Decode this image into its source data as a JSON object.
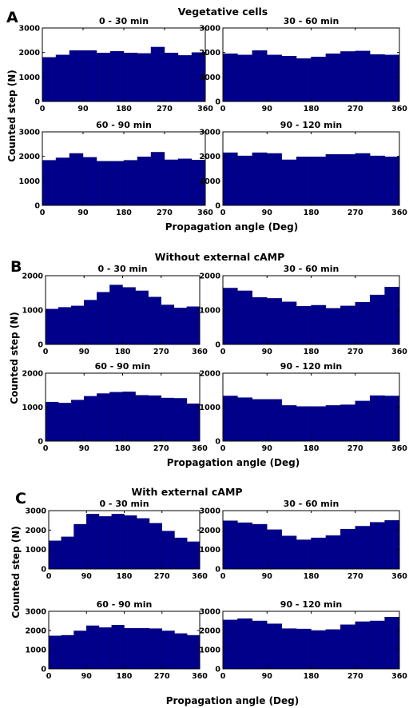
{
  "colors": {
    "bar_fill": "#00008b",
    "bar_edge": "#000066",
    "axes": "#000000",
    "background": "#ffffff"
  },
  "panels": [
    {
      "letter": "A",
      "title": "Vegetative cells",
      "ylabel": "Counted step (N)",
      "xlabel": "Propagation angle (Deg)"
    },
    {
      "letter": "B",
      "title": "Without external cAMP",
      "ylabel": "Counted step (N)",
      "xlabel": "Propagation angle (Deg)"
    },
    {
      "letter": "C",
      "title": "With external cAMP",
      "ylabel": "Counted step (N)",
      "xlabel": "Propagation angle (Deg)"
    }
  ],
  "chart_data": [
    {
      "panel": "A",
      "type": "bar",
      "title": "0 - 30 min",
      "xlim": [
        0,
        360
      ],
      "xticks": [
        0,
        90,
        180,
        270,
        360
      ],
      "ylim": [
        0,
        3000
      ],
      "yticks": [
        0,
        1000,
        2000,
        3000
      ],
      "bin_width": 30,
      "bin_edges": [
        0,
        30,
        60,
        90,
        120,
        150,
        180,
        210,
        240,
        270,
        300,
        330,
        360
      ],
      "values": [
        1800,
        1900,
        2080,
        2080,
        1980,
        2050,
        1980,
        1960,
        2220,
        1980,
        1880,
        2000
      ]
    },
    {
      "panel": "A",
      "type": "bar",
      "title": "30 - 60 min",
      "xlim": [
        0,
        360
      ],
      "xticks": [
        0,
        90,
        180,
        270,
        360
      ],
      "ylim": [
        0,
        3000
      ],
      "yticks": [
        0,
        1000,
        2000,
        3000
      ],
      "bin_width": 30,
      "bin_edges": [
        0,
        30,
        60,
        90,
        120,
        150,
        180,
        210,
        240,
        270,
        300,
        330,
        360
      ],
      "values": [
        1950,
        1900,
        2080,
        1900,
        1850,
        1750,
        1820,
        1950,
        2040,
        2060,
        1920,
        1900
      ]
    },
    {
      "panel": "A",
      "type": "bar",
      "title": "60 - 90 min",
      "xlim": [
        0,
        360
      ],
      "xticks": [
        0,
        90,
        180,
        270,
        360
      ],
      "ylim": [
        0,
        3000
      ],
      "yticks": [
        0,
        1000,
        2000,
        3000
      ],
      "bin_width": 30,
      "bin_edges": [
        0,
        30,
        60,
        90,
        120,
        150,
        180,
        210,
        240,
        270,
        300,
        330,
        360
      ],
      "values": [
        1840,
        1940,
        2120,
        1960,
        1800,
        1800,
        1840,
        1980,
        2170,
        1860,
        1900,
        1850
      ]
    },
    {
      "panel": "A",
      "type": "bar",
      "title": "90 - 120 min",
      "xlim": [
        0,
        360
      ],
      "xticks": [
        0,
        90,
        180,
        270,
        360
      ],
      "ylim": [
        0,
        3000
      ],
      "yticks": [
        0,
        1000,
        2000,
        3000
      ],
      "bin_width": 30,
      "bin_edges": [
        0,
        30,
        60,
        90,
        120,
        150,
        180,
        210,
        240,
        270,
        300,
        330,
        360
      ],
      "values": [
        2150,
        2020,
        2150,
        2120,
        1860,
        1980,
        1980,
        2080,
        2080,
        2120,
        2020,
        1980
      ]
    },
    {
      "panel": "B",
      "type": "bar",
      "title": "0 - 30 min",
      "xlim": [
        0,
        360
      ],
      "xticks": [
        0,
        90,
        180,
        270,
        360
      ],
      "ylim": [
        0,
        2000
      ],
      "yticks": [
        0,
        1000,
        2000
      ],
      "bin_width": 30,
      "bin_edges": [
        0,
        30,
        60,
        90,
        120,
        150,
        180,
        210,
        240,
        270,
        300,
        330,
        360
      ],
      "values": [
        1030,
        1080,
        1120,
        1290,
        1520,
        1730,
        1660,
        1560,
        1380,
        1150,
        1060,
        1100
      ]
    },
    {
      "panel": "B",
      "type": "bar",
      "title": "30 - 60 min",
      "xlim": [
        0,
        360
      ],
      "xticks": [
        0,
        90,
        180,
        270,
        360
      ],
      "ylim": [
        0,
        2000
      ],
      "yticks": [
        0,
        1000,
        2000
      ],
      "bin_width": 30,
      "bin_edges": [
        0,
        30,
        60,
        90,
        120,
        150,
        180,
        210,
        240,
        270,
        300,
        330,
        360
      ],
      "values": [
        1640,
        1560,
        1370,
        1340,
        1240,
        1110,
        1140,
        1050,
        1120,
        1230,
        1440,
        1670
      ]
    },
    {
      "panel": "B",
      "type": "bar",
      "title": "60 - 90 min",
      "xlim": [
        0,
        360
      ],
      "xticks": [
        0,
        90,
        180,
        270,
        360
      ],
      "ylim": [
        0,
        2000
      ],
      "yticks": [
        0,
        1000,
        2000
      ],
      "bin_width": 30,
      "bin_edges": [
        0,
        30,
        60,
        90,
        120,
        150,
        180,
        210,
        240,
        270,
        300,
        330,
        360
      ],
      "values": [
        1150,
        1120,
        1210,
        1320,
        1400,
        1440,
        1450,
        1350,
        1340,
        1270,
        1260,
        1100
      ]
    },
    {
      "panel": "B",
      "type": "bar",
      "title": "90 - 120 min",
      "xlim": [
        0,
        360
      ],
      "xticks": [
        0,
        90,
        180,
        270,
        360
      ],
      "ylim": [
        0,
        2000
      ],
      "yticks": [
        0,
        1000,
        2000
      ],
      "bin_width": 30,
      "bin_edges": [
        0,
        30,
        60,
        90,
        120,
        150,
        180,
        210,
        240,
        270,
        300,
        330,
        360
      ],
      "values": [
        1330,
        1280,
        1230,
        1230,
        1050,
        1020,
        1020,
        1050,
        1070,
        1180,
        1340,
        1330
      ]
    },
    {
      "panel": "C",
      "type": "bar",
      "title": "0 - 30 min",
      "xlim": [
        0,
        360
      ],
      "xticks": [
        0,
        90,
        180,
        270,
        360
      ],
      "ylim": [
        0,
        3000
      ],
      "yticks": [
        0,
        1000,
        2000,
        3000
      ],
      "bin_width": 30,
      "bin_edges": [
        0,
        30,
        60,
        90,
        120,
        150,
        180,
        210,
        240,
        270,
        300,
        330,
        360
      ],
      "values": [
        1450,
        1650,
        2300,
        2820,
        2700,
        2820,
        2750,
        2600,
        2350,
        1950,
        1600,
        1400
      ]
    },
    {
      "panel": "C",
      "type": "bar",
      "title": "30 - 60 min",
      "xlim": [
        0,
        360
      ],
      "xticks": [
        0,
        90,
        180,
        270,
        360
      ],
      "ylim": [
        0,
        3000
      ],
      "yticks": [
        0,
        1000,
        2000,
        3000
      ],
      "bin_width": 30,
      "bin_edges": [
        0,
        30,
        60,
        90,
        120,
        150,
        180,
        210,
        240,
        270,
        300,
        330,
        360
      ],
      "values": [
        2480,
        2380,
        2300,
        2020,
        1700,
        1500,
        1600,
        1720,
        2050,
        2200,
        2400,
        2500
      ]
    },
    {
      "panel": "C",
      "type": "bar",
      "title": "60 - 90 min",
      "xlim": [
        0,
        360
      ],
      "xticks": [
        0,
        90,
        180,
        270,
        360
      ],
      "ylim": [
        0,
        3000
      ],
      "yticks": [
        0,
        1000,
        2000,
        3000
      ],
      "bin_width": 30,
      "bin_edges": [
        0,
        30,
        60,
        90,
        120,
        150,
        180,
        210,
        240,
        270,
        300,
        330,
        360
      ],
      "values": [
        1720,
        1750,
        1980,
        2250,
        2150,
        2280,
        2120,
        2120,
        2100,
        1980,
        1840,
        1750
      ]
    },
    {
      "panel": "C",
      "type": "bar",
      "title": "90 - 120 min",
      "xlim": [
        0,
        360
      ],
      "xticks": [
        0,
        90,
        180,
        270,
        360
      ],
      "ylim": [
        0,
        3000
      ],
      "yticks": [
        0,
        1000,
        2000,
        3000
      ],
      "bin_width": 30,
      "bin_edges": [
        0,
        30,
        60,
        90,
        120,
        150,
        180,
        210,
        240,
        270,
        300,
        330,
        360
      ],
      "values": [
        2550,
        2620,
        2500,
        2350,
        2100,
        2080,
        2000,
        2050,
        2300,
        2460,
        2500,
        2700
      ]
    }
  ]
}
